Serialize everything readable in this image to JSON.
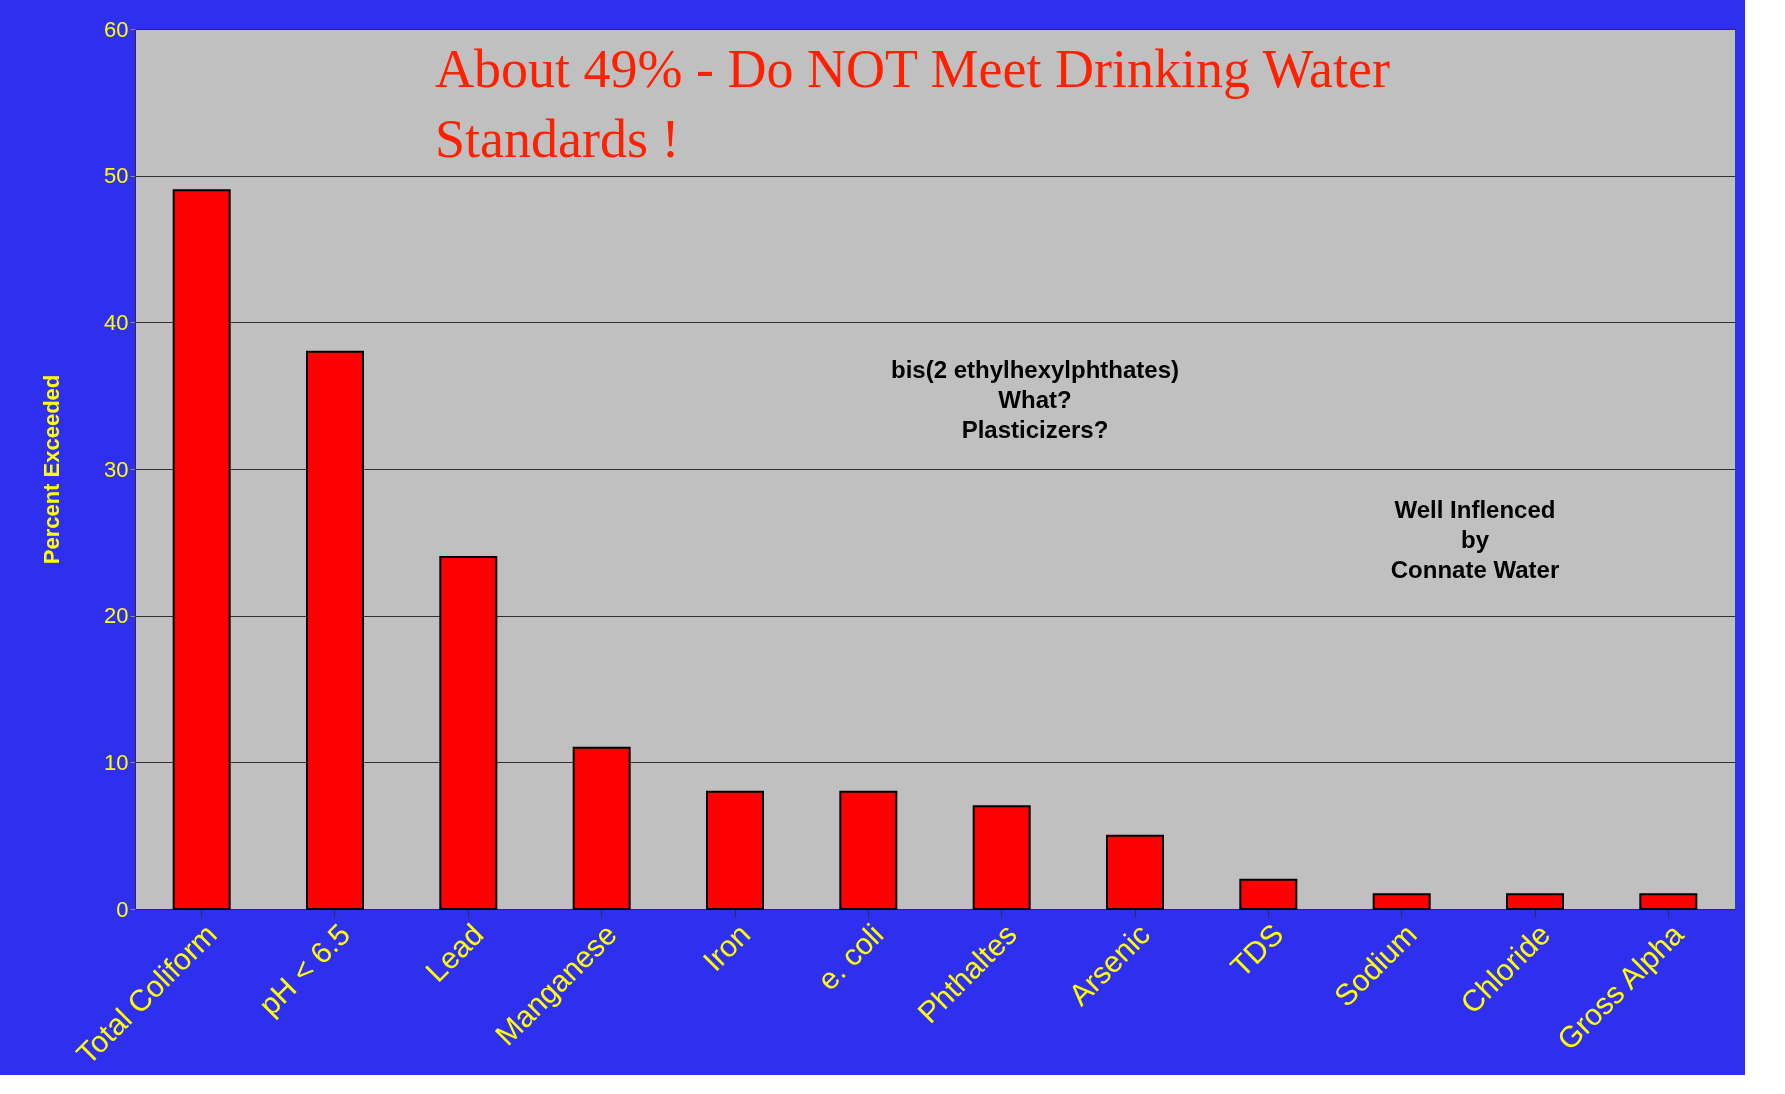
{
  "chart_data": {
    "type": "bar",
    "title": "About 49% - Do NOT Meet Drinking Water\nStandards !",
    "ylabel": "Percent Exceeded",
    "categories": [
      "Total Coliform",
      "pH < 6.5",
      "Lead",
      "Manganese",
      "Iron",
      "e. coli",
      "Phthaltes",
      "Arsenic",
      "TDS",
      "Sodium",
      "Chloride",
      "Gross Alpha"
    ],
    "values": [
      49,
      38,
      24,
      11,
      8,
      8,
      7,
      5,
      2,
      1,
      1,
      1
    ],
    "color": "#ff0000",
    "ylim": [
      0,
      60
    ],
    "yticks": [
      0,
      10,
      20,
      30,
      40,
      50,
      60
    ],
    "grid": "y",
    "annotations": [
      "bis(2 ethylhexylphthates)\nWhat?\nPlasticizers?",
      "Well Inflenced\nby\nConnate Water"
    ]
  }
}
